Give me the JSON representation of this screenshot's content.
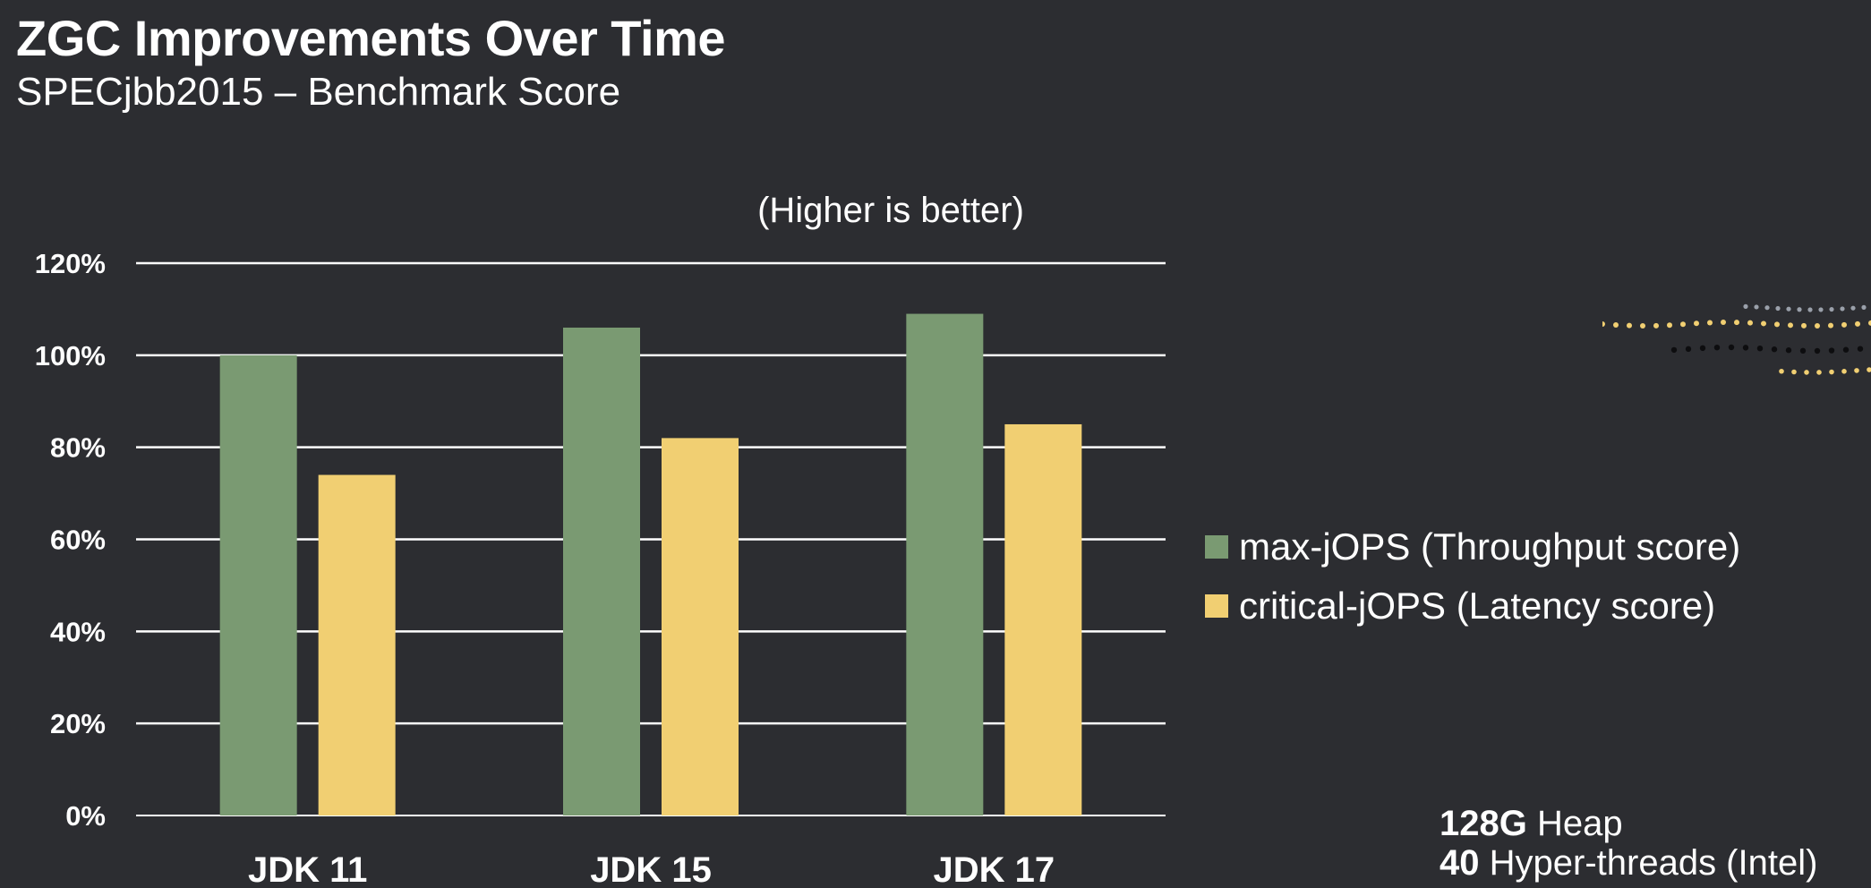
{
  "title": "ZGC Improvements Over Time",
  "subtitle": "SPECjbb2015 – Benchmark Score",
  "chart_data": {
    "type": "bar",
    "annotation": "(Higher is better)",
    "categories": [
      "JDK 11",
      "JDK 15",
      "JDK 17"
    ],
    "series": [
      {
        "name": "max-jOPS (Throughput score)",
        "color": "#7a9a72",
        "values": [
          100,
          106,
          109
        ]
      },
      {
        "name": "critical-jOPS (Latency score)",
        "color": "#f1cf72",
        "values": [
          74,
          82,
          85
        ]
      }
    ],
    "yticks": [
      "0%",
      "20%",
      "40%",
      "60%",
      "80%",
      "100%",
      "120%"
    ],
    "ylim": [
      0,
      120
    ],
    "grid": true,
    "legend_position": "right"
  },
  "specs": {
    "heap_value": "128G",
    "heap_label": "Heap",
    "threads_value": "40",
    "threads_label": "Hyper-threads (Intel)"
  }
}
